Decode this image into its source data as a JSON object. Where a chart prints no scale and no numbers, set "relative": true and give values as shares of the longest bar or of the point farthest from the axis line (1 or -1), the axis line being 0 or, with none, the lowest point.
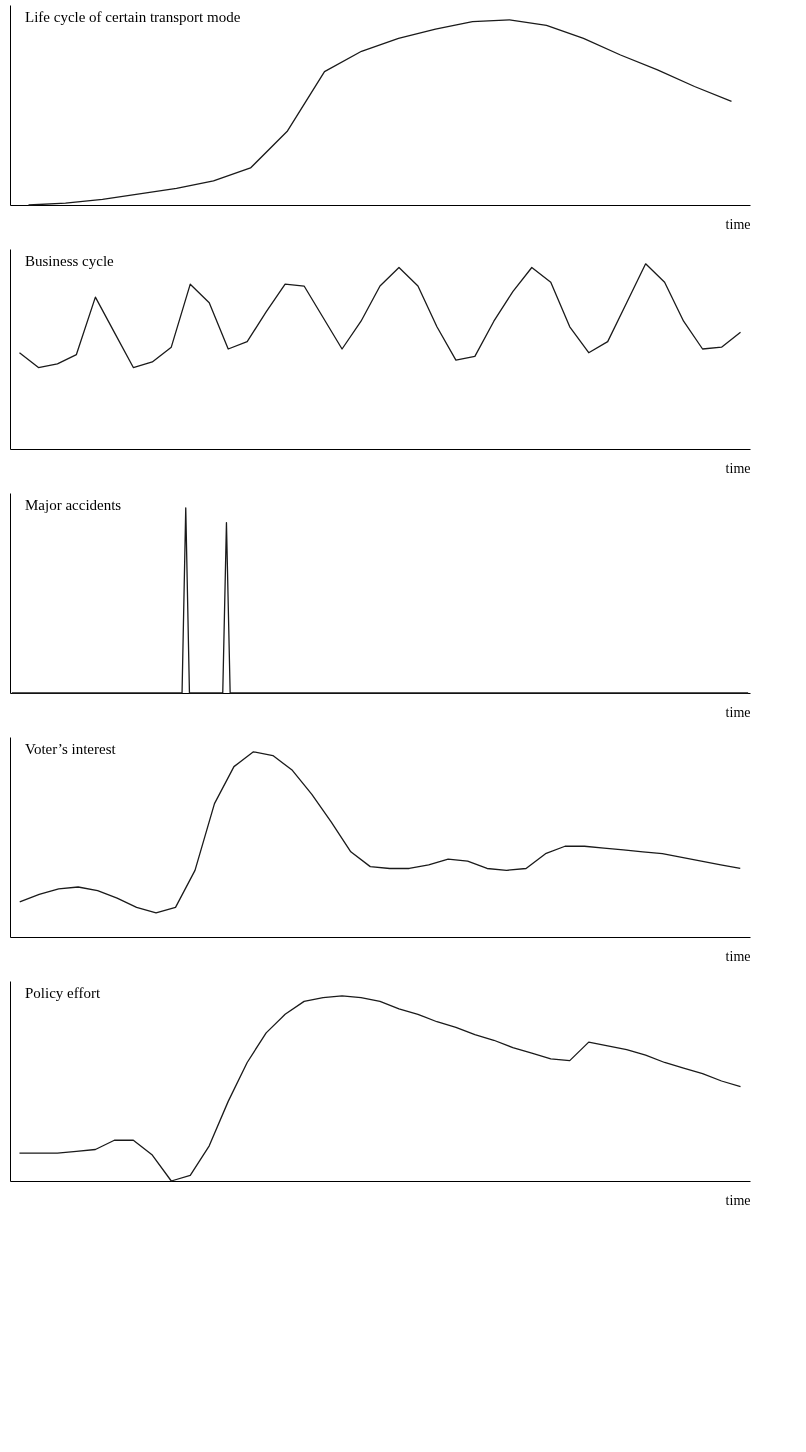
{
  "chart_data": [
    {
      "type": "line",
      "relative": true,
      "title": "Life cycle of certain transport mode",
      "xlabel": "time",
      "tick_labels": false,
      "grid": false,
      "categories": [
        null,
        null,
        null,
        null,
        null,
        null,
        null,
        null,
        null,
        null,
        null,
        null,
        null,
        null,
        null,
        null,
        null,
        null,
        null,
        null
      ],
      "series": [
        {
          "color": "#1a1a1a",
          "values": [
            0,
            0.01,
            0.03,
            0.06,
            0.09,
            0.13,
            0.2,
            0.4,
            0.72,
            0.83,
            0.9,
            0.95,
            0.99,
            1,
            0.97,
            0.9,
            0.81,
            0.73,
            0.64,
            0.56
          ]
        }
      ]
    },
    {
      "type": "line",
      "relative": true,
      "title": "Business cycle",
      "xlabel": "time",
      "tick_labels": false,
      "grid": false,
      "categories": [
        null,
        null,
        null,
        null,
        null,
        null,
        null,
        null,
        null,
        null,
        null,
        null,
        null,
        null,
        null,
        null,
        null,
        null,
        null,
        null,
        null,
        null,
        null,
        null,
        null,
        null,
        null,
        null,
        null,
        null,
        null,
        null,
        null,
        null,
        null,
        null,
        null,
        null,
        null
      ],
      "series": [
        {
          "color": "#1a1a1a",
          "values": [
            0.52,
            0.44,
            0.46,
            0.51,
            0.82,
            0.63,
            0.44,
            0.47,
            0.55,
            0.89,
            0.79,
            0.54,
            0.58,
            0.74,
            0.89,
            0.88,
            0.71,
            0.54,
            0.69,
            0.88,
            0.98,
            0.88,
            0.66,
            0.48,
            0.5,
            0.69,
            0.85,
            0.98,
            0.9,
            0.66,
            0.52,
            0.58,
            0.79,
            1,
            0.9,
            0.69,
            0.54,
            0.55,
            0.63
          ]
        }
      ]
    },
    {
      "type": "line",
      "relative": true,
      "title": "Major accidents",
      "xlabel": "time",
      "tick_labels": false,
      "grid": false,
      "categories": [
        null,
        null,
        null,
        null,
        null,
        null,
        null,
        null,
        null,
        null,
        null,
        null,
        null,
        null,
        null,
        null,
        null,
        null,
        null,
        null,
        null,
        null,
        null,
        null,
        null,
        null,
        null,
        null,
        null,
        null,
        null,
        null,
        null,
        null,
        null,
        null,
        null,
        null,
        null,
        null,
        null,
        null,
        null,
        null,
        null,
        null,
        null,
        null,
        null,
        null,
        null,
        null,
        null,
        null,
        null,
        null,
        null,
        null,
        null,
        null,
        null,
        null,
        null,
        null,
        null,
        null,
        null,
        null,
        null,
        null,
        null,
        null,
        null,
        null,
        null,
        null,
        null,
        null,
        null,
        null,
        null,
        null,
        null,
        null,
        null,
        null,
        null,
        null,
        null,
        null,
        null,
        null,
        null,
        null,
        null,
        null,
        null,
        null,
        null,
        null,
        null,
        null,
        null,
        null,
        null,
        null,
        null,
        null,
        null,
        null,
        null,
        null,
        null,
        null,
        null,
        null,
        null,
        null,
        null,
        null,
        null,
        null,
        null,
        null,
        null,
        null,
        null,
        null,
        null,
        null,
        null,
        null,
        null,
        null,
        null,
        null,
        null,
        null,
        null,
        null,
        null,
        null,
        null,
        null,
        null,
        null,
        null,
        null,
        null,
        null,
        null,
        null,
        null,
        null,
        null,
        null,
        null,
        null,
        null,
        null,
        null,
        null,
        null,
        null,
        null,
        null,
        null,
        null,
        null,
        null,
        null,
        null,
        null,
        null,
        null,
        null,
        null,
        null,
        null,
        null,
        null,
        null,
        null,
        null,
        null,
        null,
        null,
        null,
        null,
        null,
        null,
        null,
        null,
        null,
        null,
        null,
        null,
        null,
        null,
        null
      ],
      "series": [
        {
          "color": "#1a1a1a",
          "values": [
            0,
            0,
            0,
            0,
            0,
            0,
            0,
            0,
            0,
            0,
            0,
            0,
            0,
            0,
            0,
            0,
            0,
            0,
            0,
            0,
            0,
            0,
            0,
            0,
            0,
            0,
            0,
            0,
            0,
            0,
            0,
            0,
            0,
            0,
            0,
            0,
            0,
            0,
            0,
            0,
            0,
            0,
            0,
            0,
            0,
            0,
            0,
            1,
            0,
            0,
            0,
            0,
            0,
            0,
            0,
            0,
            0,
            0,
            0.92,
            0,
            0,
            0,
            0,
            0,
            0,
            0,
            0,
            0,
            0,
            0,
            0,
            0,
            0,
            0,
            0,
            0,
            0,
            0,
            0,
            0,
            0,
            0,
            0,
            0,
            0,
            0,
            0,
            0,
            0,
            0,
            0,
            0,
            0,
            0,
            0,
            0,
            0,
            0,
            0,
            0,
            0,
            0,
            0,
            0,
            0,
            0,
            0,
            0,
            0,
            0,
            0,
            0,
            0,
            0,
            0,
            0,
            0,
            0,
            0,
            0,
            0,
            0,
            0,
            0,
            0,
            0,
            0,
            0,
            0,
            0,
            0,
            0,
            0,
            0,
            0,
            0,
            0,
            0,
            0,
            0,
            0,
            0,
            0,
            0,
            0,
            0,
            0,
            0,
            0,
            0,
            0,
            0,
            0,
            0,
            0,
            0,
            0,
            0,
            0,
            0,
            0,
            0,
            0,
            0,
            0,
            0,
            0,
            0,
            0,
            0,
            0,
            0,
            0,
            0,
            0,
            0,
            0,
            0,
            0,
            0,
            0,
            0,
            0,
            0,
            0,
            0,
            0,
            0,
            0,
            0,
            0,
            0,
            0,
            0,
            0,
            0,
            0,
            0,
            0,
            0
          ]
        }
      ]
    },
    {
      "type": "line",
      "relative": true,
      "title": "Voter’s interest",
      "xlabel": "time",
      "tick_labels": false,
      "grid": false,
      "categories": [
        null,
        null,
        null,
        null,
        null,
        null,
        null,
        null,
        null,
        null,
        null,
        null,
        null,
        null,
        null,
        null,
        null,
        null,
        null,
        null,
        null,
        null,
        null,
        null,
        null,
        null,
        null,
        null,
        null,
        null,
        null,
        null,
        null,
        null,
        null,
        null,
        null,
        null
      ],
      "series": [
        {
          "color": "#1a1a1a",
          "values": [
            0.19,
            0.23,
            0.26,
            0.27,
            0.25,
            0.21,
            0.16,
            0.13,
            0.16,
            0.36,
            0.72,
            0.92,
            1,
            0.98,
            0.9,
            0.77,
            0.62,
            0.46,
            0.38,
            0.37,
            0.37,
            0.39,
            0.42,
            0.41,
            0.37,
            0.36,
            0.37,
            0.45,
            0.49,
            0.49,
            0.48,
            0.47,
            0.46,
            0.45,
            0.43,
            0.41,
            0.39,
            0.37
          ]
        }
      ]
    },
    {
      "type": "line",
      "relative": true,
      "title": "Policy effort",
      "xlabel": "time",
      "tick_labels": false,
      "grid": false,
      "categories": [
        null,
        null,
        null,
        null,
        null,
        null,
        null,
        null,
        null,
        null,
        null,
        null,
        null,
        null,
        null,
        null,
        null,
        null,
        null,
        null,
        null,
        null,
        null,
        null,
        null,
        null,
        null,
        null,
        null,
        null,
        null,
        null,
        null,
        null,
        null,
        null,
        null,
        null,
        null
      ],
      "series": [
        {
          "color": "#1a1a1a",
          "values": [
            0.15,
            0.15,
            0.15,
            0.16,
            0.17,
            0.22,
            0.22,
            0.14,
            0,
            0.03,
            0.19,
            0.43,
            0.64,
            0.8,
            0.9,
            0.97,
            0.99,
            1,
            0.99,
            0.97,
            0.93,
            0.9,
            0.86,
            0.83,
            0.79,
            0.76,
            0.72,
            0.69,
            0.66,
            0.65,
            0.75,
            0.73,
            0.71,
            0.68,
            0.64,
            0.61,
            0.58,
            0.54,
            0.51
          ]
        }
      ]
    }
  ]
}
